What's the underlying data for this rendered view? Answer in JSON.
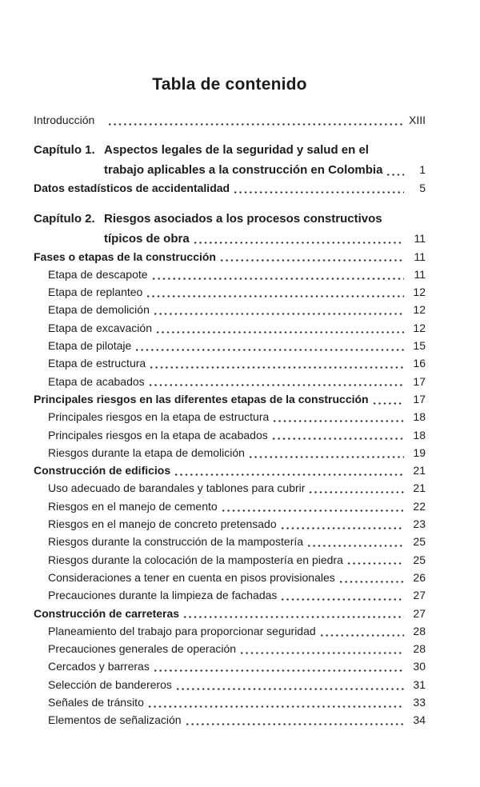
{
  "title": "Tabla de contenido",
  "colors": {
    "background": "#ffffff",
    "text": "#1c1c1c",
    "dots": "#2a2a2a"
  },
  "entries": [
    {
      "type": "intro",
      "label": "Introducción",
      "page": "XIII"
    },
    {
      "type": "chapter",
      "prefix": "Capítulo 1.",
      "line1": "Aspectos legales de la seguridad y salud en el",
      "line2": "trabajo aplicables a la construcción en Colombia",
      "page": "1"
    },
    {
      "type": "section",
      "label": "Datos estadísticos de accidentalidad",
      "page": "5"
    },
    {
      "type": "chapter",
      "prefix": "Capítulo 2.",
      "line1": "Riesgos asociados a los procesos constructivos",
      "line2": "típicos de obra",
      "page": "11"
    },
    {
      "type": "section",
      "label": "Fases o etapas de la construcción",
      "page": "11"
    },
    {
      "type": "sub",
      "label": "Etapa de descapote",
      "page": "11"
    },
    {
      "type": "sub",
      "label": "Etapa de replanteo",
      "page": "12"
    },
    {
      "type": "sub",
      "label": "Etapa de demolición",
      "page": "12"
    },
    {
      "type": "sub",
      "label": "Etapa de excavación",
      "page": "12"
    },
    {
      "type": "sub",
      "label": "Etapa de pilotaje",
      "page": "15"
    },
    {
      "type": "sub",
      "label": "Etapa de estructura",
      "page": "16"
    },
    {
      "type": "sub",
      "label": "Etapa de acabados",
      "page": "17"
    },
    {
      "type": "section",
      "label": "Principales riesgos en las diferentes etapas de la construcción",
      "page": "17"
    },
    {
      "type": "sub",
      "label": "Principales riesgos en la etapa de estructura",
      "page": "18"
    },
    {
      "type": "sub",
      "label": "Principales riesgos en la etapa de acabados",
      "page": "18"
    },
    {
      "type": "sub",
      "label": "Riesgos durante la etapa de demolición",
      "page": "19"
    },
    {
      "type": "section",
      "label": "Construcción de edificios",
      "page": "21"
    },
    {
      "type": "sub",
      "label": "Uso adecuado de barandales y tablones para cubrir",
      "page": "21"
    },
    {
      "type": "sub",
      "label": "Riesgos en el manejo de cemento",
      "page": "22"
    },
    {
      "type": "sub",
      "label": "Riesgos en el manejo de concreto pretensado",
      "page": "23"
    },
    {
      "type": "sub",
      "label": "Riesgos durante la construcción de la mampostería",
      "page": "25"
    },
    {
      "type": "sub",
      "label": "Riesgos durante la colocación de la mampostería en piedra",
      "page": "25"
    },
    {
      "type": "sub",
      "label": "Consideraciones a tener en cuenta en pisos provisionales",
      "page": "26"
    },
    {
      "type": "sub",
      "label": "Precauciones durante la limpieza de fachadas",
      "page": "27"
    },
    {
      "type": "section",
      "label": "Construcción de carreteras",
      "page": "27"
    },
    {
      "type": "sub",
      "label": "Planeamiento del trabajo para proporcionar seguridad",
      "page": "28"
    },
    {
      "type": "sub",
      "label": "Precauciones generales de operación",
      "page": "28"
    },
    {
      "type": "sub",
      "label": "Cercados y barreras",
      "page": "30"
    },
    {
      "type": "sub",
      "label": "Selección de bandereros",
      "page": "31"
    },
    {
      "type": "sub",
      "label": "Señales de tránsito",
      "page": "33"
    },
    {
      "type": "sub",
      "label": "Elementos de señalización",
      "page": "34"
    }
  ]
}
